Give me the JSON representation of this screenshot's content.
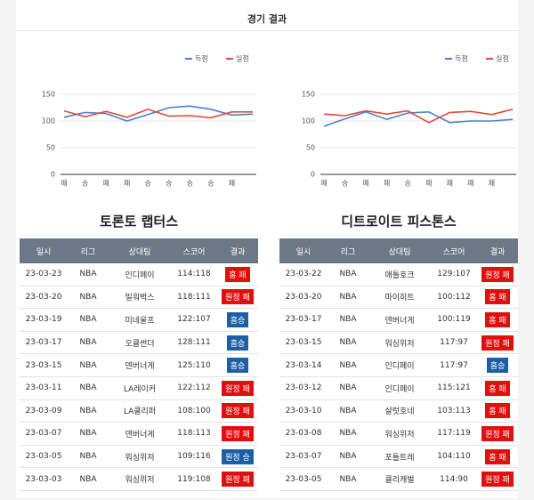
{
  "header": {
    "title": "경기 결과"
  },
  "chart_data": [
    {
      "type": "line",
      "categories": [
        "패",
        "승",
        "패",
        "패",
        "승",
        "승",
        "승",
        "승",
        "패",
        null
      ],
      "series": [
        {
          "name": "득점",
          "color": "#4a7fd6",
          "values": [
            107,
            116,
            114,
            100,
            112,
            125,
            128,
            122,
            111,
            113
          ]
        },
        {
          "name": "실점",
          "color": "#e04a3a",
          "values": [
            119,
            108,
            118,
            107,
            122,
            109,
            110,
            106,
            117,
            117
          ]
        }
      ],
      "ylim": [
        0,
        160
      ],
      "yticks": [
        0,
        50,
        100,
        150
      ],
      "legend": "top-right"
    },
    {
      "type": "line",
      "categories": [
        "패",
        "승",
        "패",
        "패",
        "승",
        "패",
        "패",
        "패",
        "패",
        null
      ],
      "series": [
        {
          "name": "득점",
          "color": "#4a7fd6",
          "values": [
            90,
            104,
            117,
            103,
            115,
            117,
            97,
            100,
            100,
            103
          ]
        },
        {
          "name": "실점",
          "color": "#e04a3a",
          "values": [
            113,
            110,
            119,
            113,
            119,
            97,
            116,
            118,
            112,
            122
          ]
        }
      ],
      "ylim": [
        0,
        160
      ],
      "yticks": [
        0,
        50,
        100,
        150
      ],
      "legend": "top-right"
    }
  ],
  "tables": [
    {
      "team": "토론토 랩터스",
      "columns": [
        "일시",
        "리그",
        "상대팀",
        "스코어",
        "결과"
      ],
      "rows": [
        [
          "23-03-23",
          "NBA",
          "인디페이",
          "114:118",
          "홈 패"
        ],
        [
          "23-03-20",
          "NBA",
          "밀워벅스",
          "118:111",
          "원정 패"
        ],
        [
          "23-03-19",
          "NBA",
          "미네울프",
          "122:107",
          "홈승"
        ],
        [
          "23-03-17",
          "NBA",
          "오클썬더",
          "128:111",
          "홈승"
        ],
        [
          "23-03-15",
          "NBA",
          "덴버너게",
          "125:110",
          "홈승"
        ],
        [
          "23-03-11",
          "NBA",
          "LA레이커",
          "122:112",
          "원정 패"
        ],
        [
          "23-03-09",
          "NBA",
          "LA클리퍼",
          "108:100",
          "원정 패"
        ],
        [
          "23-03-07",
          "NBA",
          "덴버너게",
          "118:113",
          "원정 패"
        ],
        [
          "23-03-05",
          "NBA",
          "워싱위저",
          "109:116",
          "원정 승"
        ],
        [
          "23-03-03",
          "NBA",
          "워싱위저",
          "119:108",
          "원정 패"
        ]
      ]
    },
    {
      "team": "디트로이트 피스톤스",
      "columns": [
        "일시",
        "리그",
        "상대팀",
        "스코어",
        "결과"
      ],
      "rows": [
        [
          "23-03-22",
          "NBA",
          "애틀호크",
          "129:107",
          "원정 패"
        ],
        [
          "23-03-20",
          "NBA",
          "마이히트",
          "100:112",
          "홈 패"
        ],
        [
          "23-03-17",
          "NBA",
          "덴버너게",
          "100:119",
          "홈 패"
        ],
        [
          "23-03-15",
          "NBA",
          "워싱위저",
          "117:97",
          "원정 패"
        ],
        [
          "23-03-14",
          "NBA",
          "인디페이",
          "117:97",
          "홈승"
        ],
        [
          "23-03-12",
          "NBA",
          "인디페이",
          "115:121",
          "홈 패"
        ],
        [
          "23-03-10",
          "NBA",
          "샬럿호네",
          "103:113",
          "홈 패"
        ],
        [
          "23-03-08",
          "NBA",
          "워싱위저",
          "117:119",
          "원정 패"
        ],
        [
          "23-03-07",
          "NBA",
          "포틀트레",
          "104:110",
          "홈 패"
        ],
        [
          "23-03-05",
          "NBA",
          "클리캐벌",
          "114:90",
          "원정 패"
        ]
      ]
    }
  ]
}
